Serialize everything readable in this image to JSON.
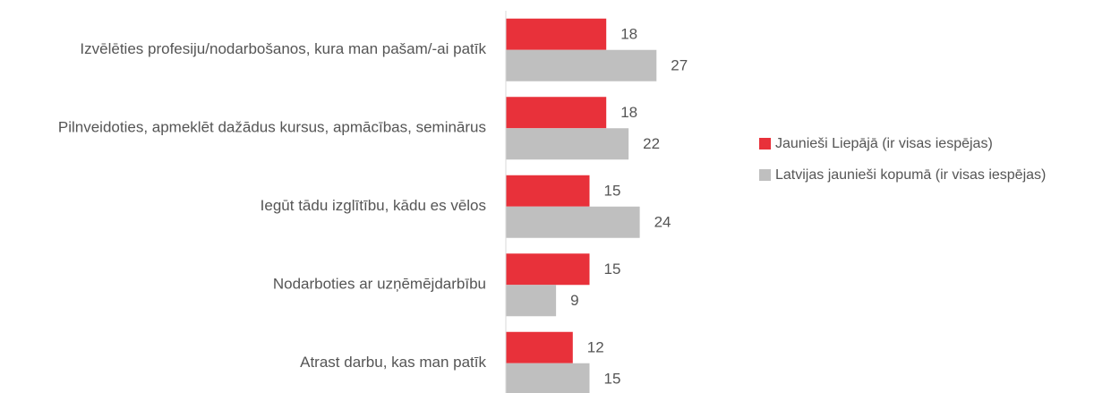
{
  "chart_data": {
    "type": "barh",
    "categories": [
      "Izvēlēties profesiju/nodarbošanos, kura man pašam/-ai patīk",
      "Pilnveidoties, apmeklēt dažādus kursus, apmācības, seminārus",
      "Iegūt tādu izglītību, kādu es vēlos",
      "Nodarboties ar uzņēmējdarbību",
      "Atrast darbu, kas man patīk"
    ],
    "series": [
      {
        "name": "Jaunieši Liepājā (ir visas iespējas)",
        "color": "#e8313a",
        "values": [
          18,
          18,
          15,
          15,
          12
        ]
      },
      {
        "name": "Latvijas jaunieši kopumā (ir visas iespējas)",
        "color": "#bfbfbf",
        "values": [
          27,
          22,
          24,
          9,
          15
        ]
      }
    ],
    "xlim": [
      0,
      30
    ],
    "legend": "right"
  }
}
